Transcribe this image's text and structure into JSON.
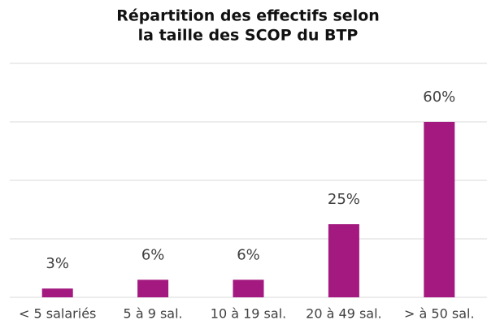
{
  "chart_data": {
    "type": "bar",
    "title": [
      "Répartition des effectifs selon",
      "la taille des SCOP du BTP"
    ],
    "categories": [
      "< 5 salariés",
      "5 à 9 sal.",
      "10 à 19 sal.",
      "20 à 49 sal.",
      "> à 50 sal."
    ],
    "values": [
      3,
      6,
      6,
      25,
      60
    ],
    "value_labels": [
      "3%",
      "6%",
      "6%",
      "25%",
      "60%"
    ],
    "color": "#a3197f",
    "ylim": [
      0,
      80
    ],
    "yticks": [
      0,
      20,
      40,
      60,
      80
    ],
    "grid": true
  }
}
